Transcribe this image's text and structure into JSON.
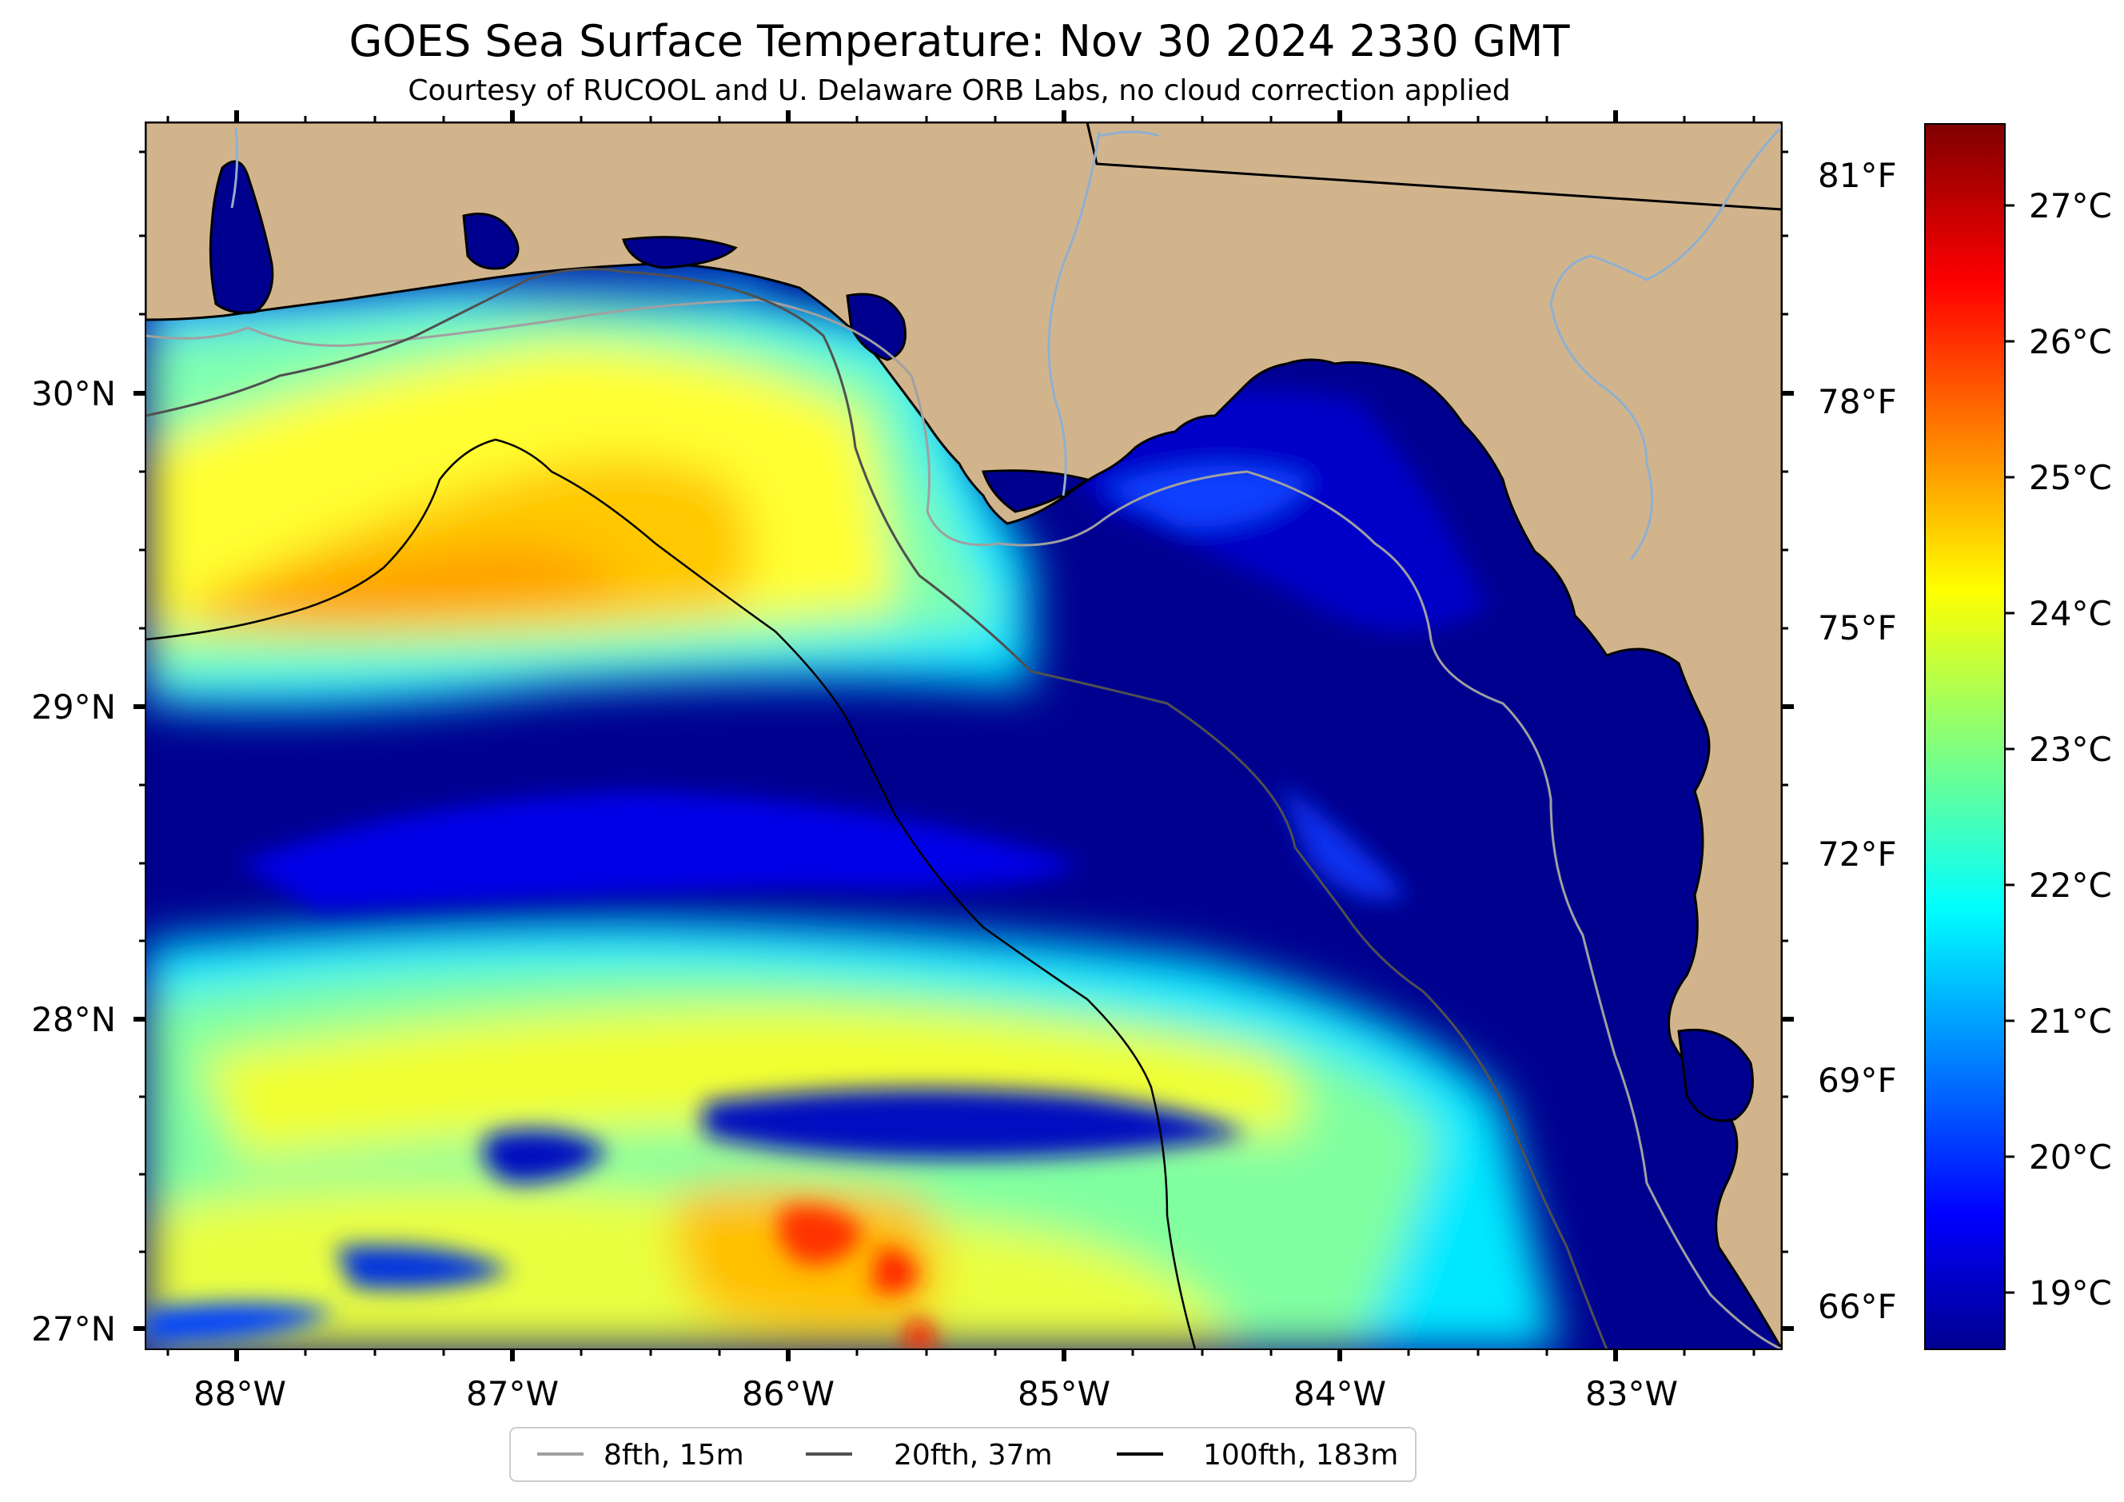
{
  "title": "GOES Sea Surface Temperature: Nov 30 2024 2330 GMT",
  "subtitle": "Courtesy of RUCOOL and U. Delaware ORB Labs, no cloud correction applied",
  "lat_labels": [
    "30°N",
    "29°N",
    "28°N",
    "27°N"
  ],
  "lon_labels": [
    "88°W",
    "87°W",
    "86°W",
    "85°W",
    "84°W",
    "83°W"
  ],
  "fahrenheit_labels": [
    "81°F",
    "78°F",
    "75°F",
    "72°F",
    "69°F",
    "66°F"
  ],
  "colorbar": {
    "labels": [
      "27°C",
      "26°C",
      "25°C",
      "24°C",
      "23°C",
      "22°C",
      "21°C",
      "20°C",
      "19°C"
    ],
    "min_c": 18.6,
    "max_c": 27.6,
    "colormap": "jet"
  },
  "legend": {
    "items": [
      {
        "label": "8fth, 15m",
        "color": "#a0a0a0"
      },
      {
        "label": "20fth, 37m",
        "color": "#505050"
      },
      {
        "label": "100fth, 183m",
        "color": "#000000"
      }
    ]
  },
  "colors": {
    "land": "#d2b48c",
    "river": "#8fb0d0",
    "ocean_cold": "#00008f",
    "ocean_warm": "#ffd800"
  },
  "map_extent": {
    "lon_min": -88.33,
    "lon_max": -82.4,
    "lat_min": 26.93,
    "lat_max": 30.85
  }
}
